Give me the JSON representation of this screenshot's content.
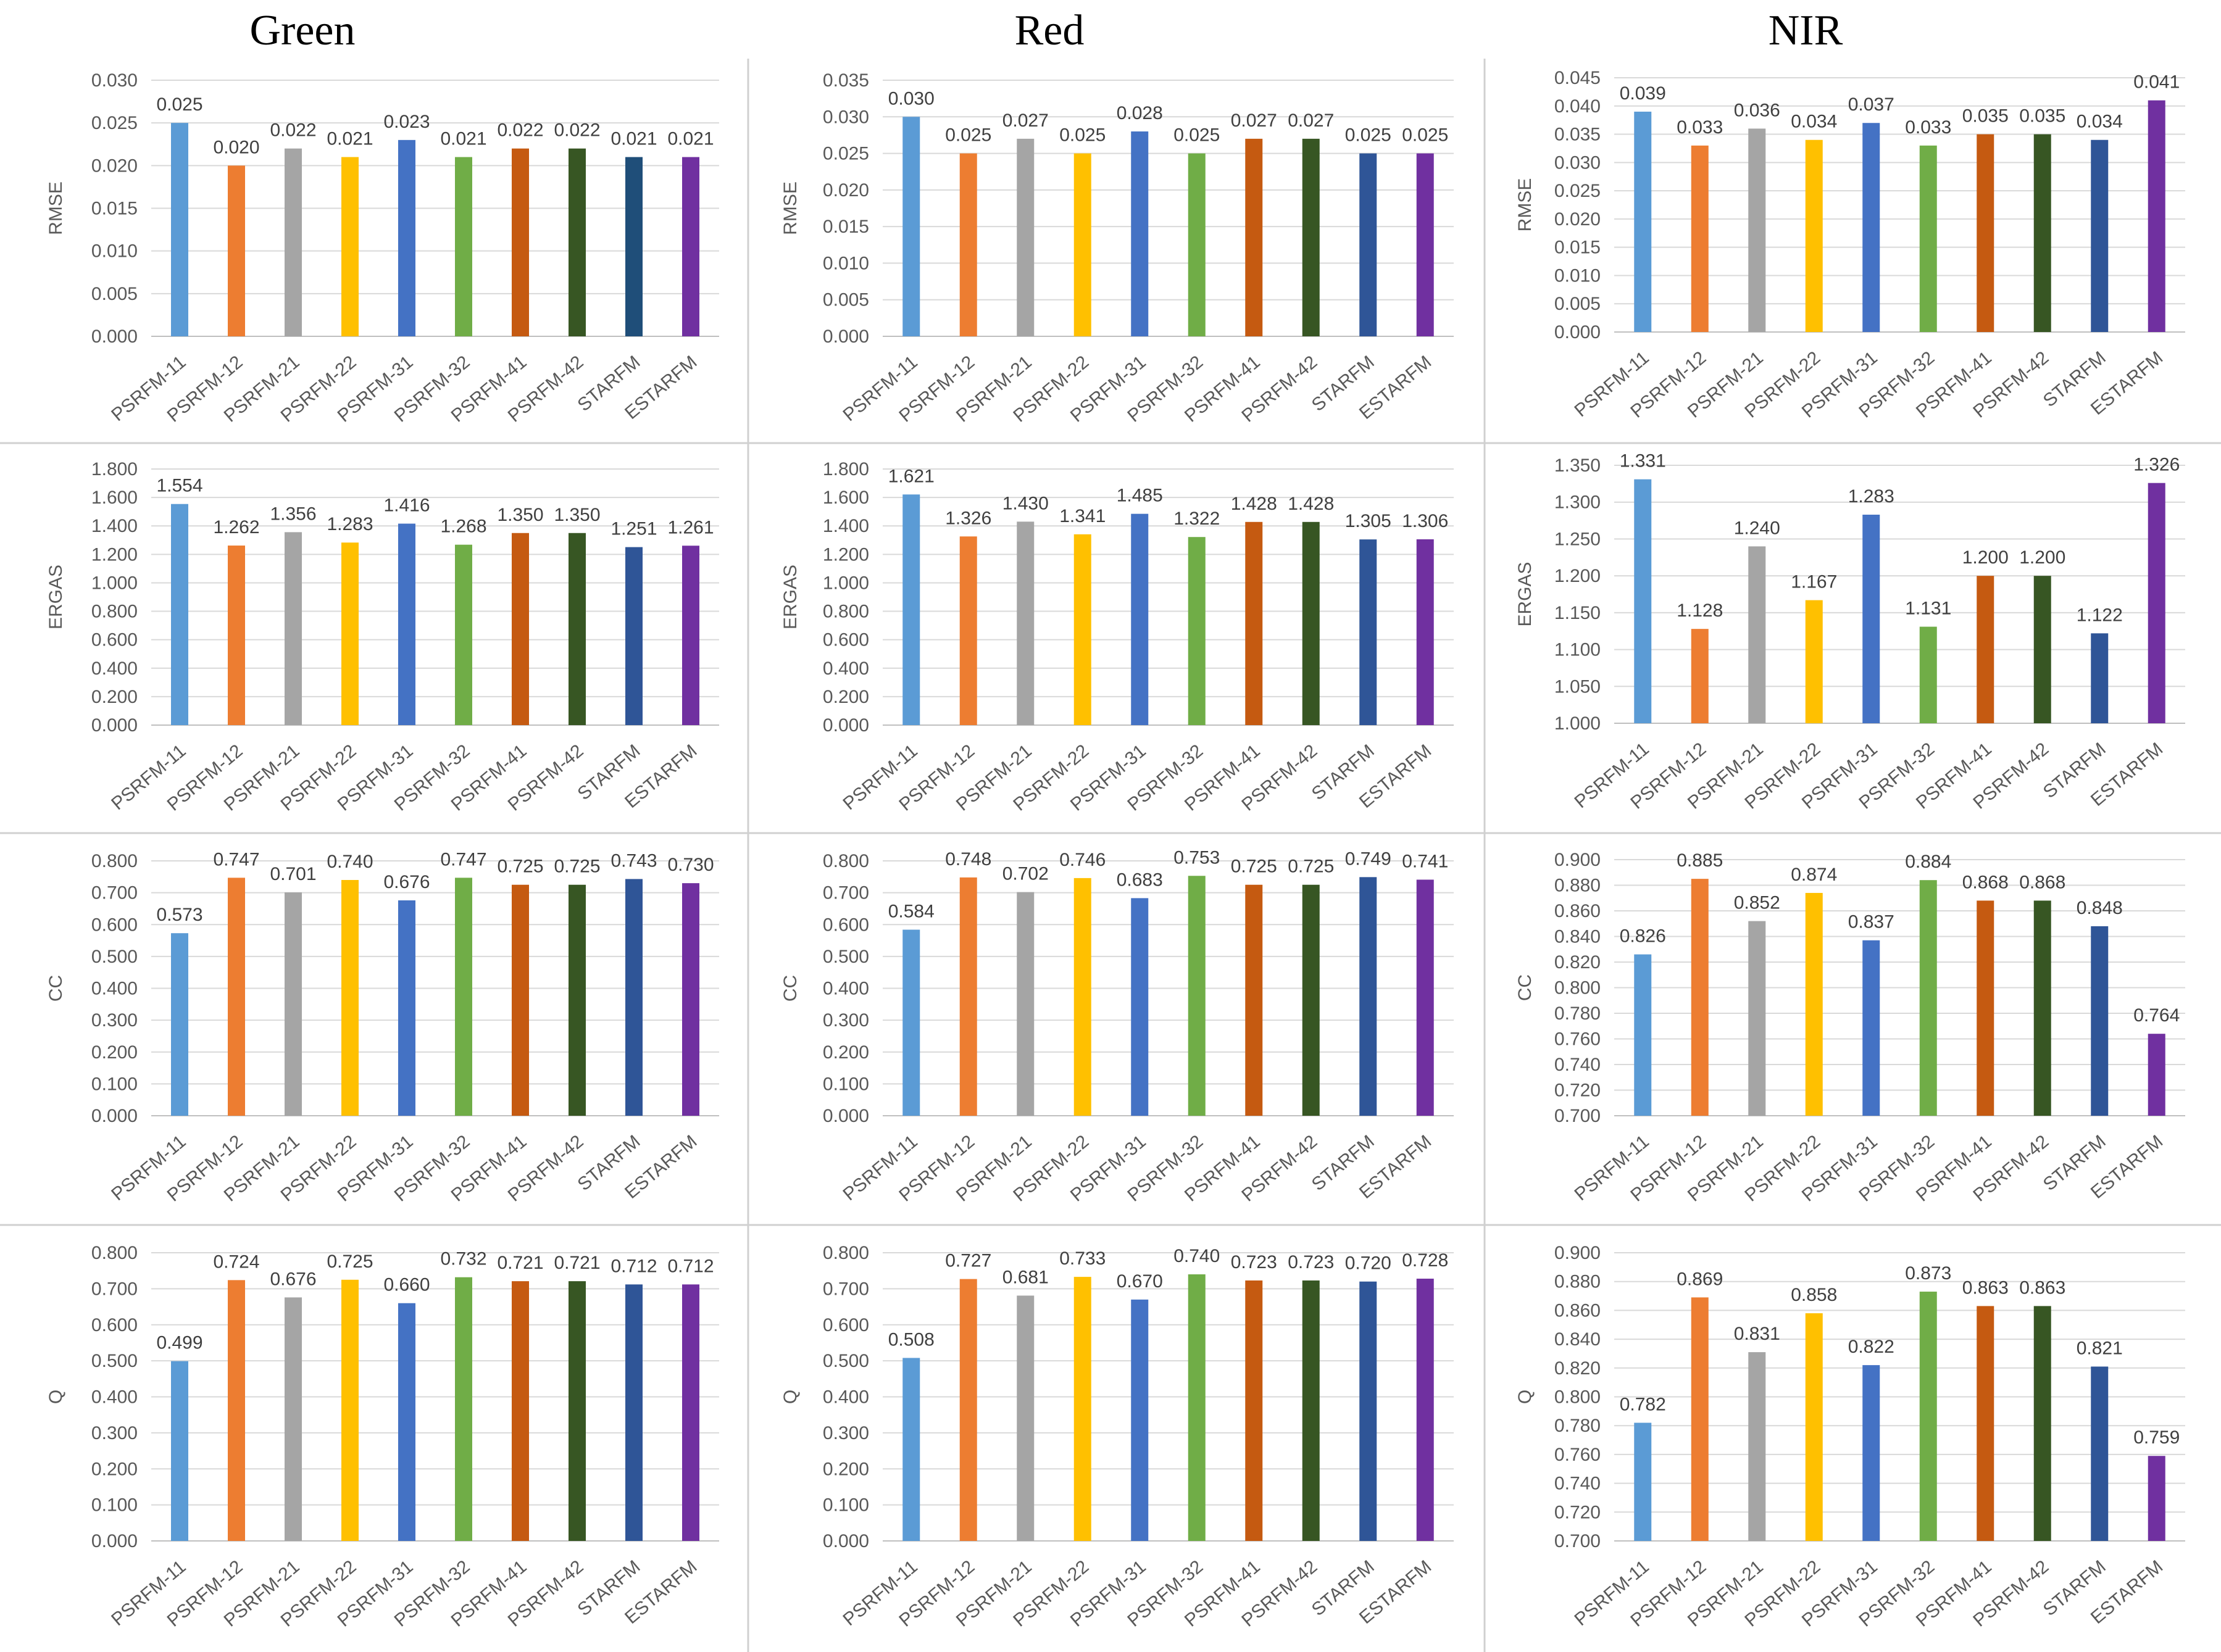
{
  "figure": {
    "column_titles": [
      "Green",
      "Red",
      "NIR"
    ],
    "colors": {
      "PSRFM-11": "#5b9bd5",
      "PSRFM-12": "#ed7d31",
      "PSRFM-21": "#a5a5a5",
      "PSRFM-22": "#ffc000",
      "PSRFM-31": "#4472c4",
      "PSRFM-32": "#70ad47",
      "PSRFM-41": "#c55a11",
      "PSRFM-42": "#375623",
      "STARFM": "#2f5597",
      "ESTARFM": "#7030a0"
    }
  },
  "chart_data": [
    {
      "type": "bar",
      "title": "Green",
      "ylabel": "RMSE",
      "decimals": 3,
      "categories": [
        "PSRFM-11",
        "PSRFM-12",
        "PSRFM-21",
        "PSRFM-22",
        "PSRFM-31",
        "PSRFM-32",
        "PSRFM-41",
        "PSRFM-42",
        "STARFM",
        "ESTARFM"
      ],
      "values": [
        0.025,
        0.02,
        0.022,
        0.021,
        0.023,
        0.021,
        0.022,
        0.022,
        0.021,
        0.021
      ],
      "ylim": [
        0,
        0.03
      ],
      "ytick_step": 0.005,
      "bar_colors": {
        "STARFM": "#1f4e79"
      }
    },
    {
      "type": "bar",
      "title": "Red",
      "ylabel": "RMSE",
      "decimals": 3,
      "categories": [
        "PSRFM-11",
        "PSRFM-12",
        "PSRFM-21",
        "PSRFM-22",
        "PSRFM-31",
        "PSRFM-32",
        "PSRFM-41",
        "PSRFM-42",
        "STARFM",
        "ESTARFM"
      ],
      "values": [
        0.03,
        0.025,
        0.027,
        0.025,
        0.028,
        0.025,
        0.027,
        0.027,
        0.025,
        0.025
      ],
      "ylim": [
        0,
        0.035
      ],
      "ytick_step": 0.005
    },
    {
      "type": "bar",
      "title": "NIR",
      "ylabel": "RMSE",
      "decimals": 3,
      "categories": [
        "PSRFM-11",
        "PSRFM-12",
        "PSRFM-21",
        "PSRFM-22",
        "PSRFM-31",
        "PSRFM-32",
        "PSRFM-41",
        "PSRFM-42",
        "STARFM",
        "ESTARFM"
      ],
      "values": [
        0.039,
        0.033,
        0.036,
        0.034,
        0.037,
        0.033,
        0.035,
        0.035,
        0.034,
        0.041
      ],
      "ylim": [
        0,
        0.045
      ],
      "ytick_step": 0.005
    },
    {
      "type": "bar",
      "title": "Green",
      "ylabel": "ERGAS",
      "decimals": 3,
      "categories": [
        "PSRFM-11",
        "PSRFM-12",
        "PSRFM-21",
        "PSRFM-22",
        "PSRFM-31",
        "PSRFM-32",
        "PSRFM-41",
        "PSRFM-42",
        "STARFM",
        "ESTARFM"
      ],
      "values": [
        1.554,
        1.262,
        1.356,
        1.283,
        1.416,
        1.268,
        1.35,
        1.35,
        1.251,
        1.261
      ],
      "ylim": [
        0,
        1.8
      ],
      "ytick_step": 0.2
    },
    {
      "type": "bar",
      "title": "Red",
      "ylabel": "ERGAS",
      "decimals": 3,
      "categories": [
        "PSRFM-11",
        "PSRFM-12",
        "PSRFM-21",
        "PSRFM-22",
        "PSRFM-31",
        "PSRFM-32",
        "PSRFM-41",
        "PSRFM-42",
        "STARFM",
        "ESTARFM"
      ],
      "values": [
        1.621,
        1.326,
        1.43,
        1.341,
        1.485,
        1.322,
        1.428,
        1.428,
        1.305,
        1.306
      ],
      "ylim": [
        0,
        1.8
      ],
      "ytick_step": 0.2
    },
    {
      "type": "bar",
      "title": "NIR",
      "ylabel": "ERGAS",
      "decimals": 3,
      "categories": [
        "PSRFM-11",
        "PSRFM-12",
        "PSRFM-21",
        "PSRFM-22",
        "PSRFM-31",
        "PSRFM-32",
        "PSRFM-41",
        "PSRFM-42",
        "STARFM",
        "ESTARFM"
      ],
      "values": [
        1.331,
        1.128,
        1.24,
        1.167,
        1.283,
        1.131,
        1.2,
        1.2,
        1.122,
        1.326
      ],
      "ylim": [
        1.0,
        1.35
      ],
      "ytick_step": 0.05
    },
    {
      "type": "bar",
      "title": "Green",
      "ylabel": "CC",
      "decimals": 3,
      "categories": [
        "PSRFM-11",
        "PSRFM-12",
        "PSRFM-21",
        "PSRFM-22",
        "PSRFM-31",
        "PSRFM-32",
        "PSRFM-41",
        "PSRFM-42",
        "STARFM",
        "ESTARFM"
      ],
      "values": [
        0.573,
        0.747,
        0.701,
        0.74,
        0.676,
        0.747,
        0.725,
        0.725,
        0.743,
        0.73
      ],
      "ylim": [
        0,
        0.8
      ],
      "ytick_step": 0.1
    },
    {
      "type": "bar",
      "title": "Red",
      "ylabel": "CC",
      "decimals": 3,
      "categories": [
        "PSRFM-11",
        "PSRFM-12",
        "PSRFM-21",
        "PSRFM-22",
        "PSRFM-31",
        "PSRFM-32",
        "PSRFM-41",
        "PSRFM-42",
        "STARFM",
        "ESTARFM"
      ],
      "values": [
        0.584,
        0.748,
        0.702,
        0.746,
        0.683,
        0.753,
        0.725,
        0.725,
        0.749,
        0.741
      ],
      "ylim": [
        0,
        0.8
      ],
      "ytick_step": 0.1
    },
    {
      "type": "bar",
      "title": "NIR",
      "ylabel": "CC",
      "decimals": 3,
      "categories": [
        "PSRFM-11",
        "PSRFM-12",
        "PSRFM-21",
        "PSRFM-22",
        "PSRFM-31",
        "PSRFM-32",
        "PSRFM-41",
        "PSRFM-42",
        "STARFM",
        "ESTARFM"
      ],
      "values": [
        0.826,
        0.885,
        0.852,
        0.874,
        0.837,
        0.884,
        0.868,
        0.868,
        0.848,
        0.764
      ],
      "ylim": [
        0.7,
        0.9
      ],
      "ytick_step": 0.02
    },
    {
      "type": "bar",
      "title": "Green",
      "ylabel": "Q",
      "decimals": 3,
      "categories": [
        "PSRFM-11",
        "PSRFM-12",
        "PSRFM-21",
        "PSRFM-22",
        "PSRFM-31",
        "PSRFM-32",
        "PSRFM-41",
        "PSRFM-42",
        "STARFM",
        "ESTARFM"
      ],
      "values": [
        0.499,
        0.724,
        0.676,
        0.725,
        0.66,
        0.732,
        0.721,
        0.721,
        0.712,
        0.712
      ],
      "ylim": [
        0,
        0.8
      ],
      "ytick_step": 0.1
    },
    {
      "type": "bar",
      "title": "Red",
      "ylabel": "Q",
      "decimals": 3,
      "categories": [
        "PSRFM-11",
        "PSRFM-12",
        "PSRFM-21",
        "PSRFM-22",
        "PSRFM-31",
        "PSRFM-32",
        "PSRFM-41",
        "PSRFM-42",
        "STARFM",
        "ESTARFM"
      ],
      "values": [
        0.508,
        0.727,
        0.681,
        0.733,
        0.67,
        0.74,
        0.723,
        0.723,
        0.72,
        0.728
      ],
      "ylim": [
        0,
        0.8
      ],
      "ytick_step": 0.1
    },
    {
      "type": "bar",
      "title": "NIR",
      "ylabel": "Q",
      "decimals": 3,
      "categories": [
        "PSRFM-11",
        "PSRFM-12",
        "PSRFM-21",
        "PSRFM-22",
        "PSRFM-31",
        "PSRFM-32",
        "PSRFM-41",
        "PSRFM-42",
        "STARFM",
        "ESTARFM"
      ],
      "values": [
        0.782,
        0.869,
        0.831,
        0.858,
        0.822,
        0.873,
        0.863,
        0.863,
        0.821,
        0.759
      ],
      "ylim": [
        0.7,
        0.9
      ],
      "ytick_step": 0.02
    }
  ]
}
